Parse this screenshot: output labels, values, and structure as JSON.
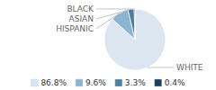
{
  "chart_data": {
    "type": "pie",
    "categories": [
      "WHITE",
      "HISPANIC",
      "ASIAN",
      "BLACK"
    ],
    "values": [
      86.8,
      9.6,
      3.3,
      0.4
    ],
    "value_labels": [
      "86.8%",
      "9.6%",
      "3.3%",
      "0.4%"
    ],
    "colors": [
      "#dce6f1",
      "#8db4d0",
      "#4f7fa0",
      "#1e3f5a"
    ],
    "legend": "bottom"
  }
}
